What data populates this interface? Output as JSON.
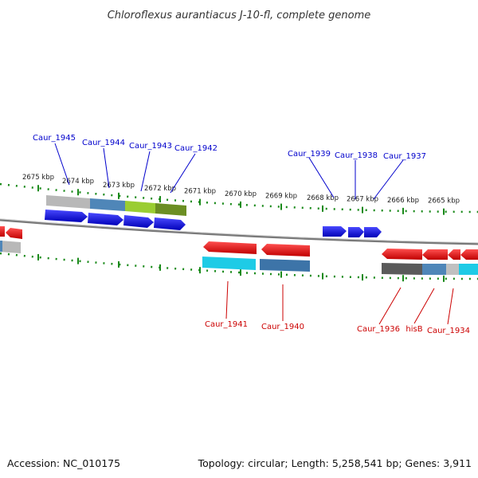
{
  "title": "Chloroflexus aurantiacus J-10-fl, complete genome",
  "footer": {
    "accession": "Accession: NC_010175",
    "summary": "Topology: circular; Length: 5,258,541 bp; Genes: 3,911"
  },
  "colors": {
    "forward_label": "#0000cc",
    "reverse_label": "#cc0000",
    "tick": "#1a8a1a",
    "backbone": "#888888",
    "gene_forward": "#1010ee",
    "gene_reverse": "#ee1010"
  },
  "ticks": {
    "top": [
      "2675 kbp",
      "2674 kbp",
      "2673 kbp",
      "2672 kbp",
      "2671 kbp",
      "2670 kbp",
      "2669 kbp",
      "2668 kbp",
      "2667 kbp",
      "2666 kbp",
      "2665 kbp"
    ]
  },
  "genes": {
    "forward": [
      {
        "name": "Caur_1945",
        "icon": "arrow-right"
      },
      {
        "name": "Caur_1944",
        "icon": "arrow-right"
      },
      {
        "name": "Caur_1943",
        "icon": "arrow-right"
      },
      {
        "name": "Caur_1942",
        "icon": "arrow-right"
      },
      {
        "name": "Caur_1939",
        "icon": "arrow-right"
      },
      {
        "name": "Caur_1938",
        "icon": "arrow-right"
      },
      {
        "name": "Caur_1937",
        "icon": "arrow-right"
      }
    ],
    "reverse": [
      {
        "name": "Caur_1941",
        "icon": "arrow-left"
      },
      {
        "name": "Caur_1940",
        "icon": "arrow-left"
      },
      {
        "name": "Caur_1936",
        "icon": "arrow-left"
      },
      {
        "name": "hisB",
        "icon": "arrow-left"
      },
      {
        "name": "Caur_1934",
        "icon": "arrow-left"
      }
    ]
  }
}
